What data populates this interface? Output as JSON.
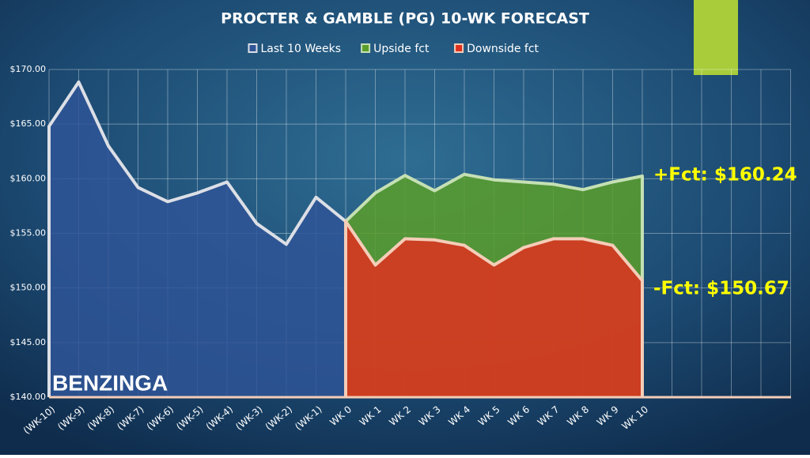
{
  "chart_data": {
    "type": "area",
    "title": "PROCTER & GAMBLE (PG) 10-WK FORECAST",
    "categories": [
      "(WK-10)",
      "(WK-9)",
      "(WK-8)",
      "(WK-7)",
      "(WK-6)",
      "(WK-5)",
      "(WK-4)",
      "(WK-3)",
      "(WK-2)",
      "(WK-1)",
      "WK 0",
      "WK 1",
      "WK 2",
      "WK 3",
      "WK 4",
      "WK 5",
      "WK 6",
      "WK 7",
      "WK 8",
      "WK 9",
      "WK 10",
      null,
      null,
      null,
      null,
      null
    ],
    "series": [
      {
        "name": "Last 10 Weeks",
        "color": "#2f5597",
        "line_color": "#dcdfe6",
        "values": [
          164.8,
          168.85,
          163.0,
          159.2,
          157.9,
          158.7,
          159.7,
          155.9,
          154.0,
          158.3,
          156.1,
          null,
          null,
          null,
          null,
          null,
          null,
          null,
          null,
          null,
          null,
          null,
          null,
          null,
          null,
          null
        ]
      },
      {
        "name": "Upside fct",
        "color": "#5a9e2a",
        "line_color": "#c5e0b4",
        "values": [
          null,
          null,
          null,
          null,
          null,
          null,
          null,
          null,
          null,
          null,
          156.1,
          158.7,
          160.3,
          158.9,
          160.4,
          159.9,
          159.7,
          159.5,
          159.0,
          159.7,
          160.24,
          null,
          null,
          null,
          null,
          null
        ]
      },
      {
        "name": "Downside fct",
        "color": "#e0301e",
        "line_color": "#f4cdb8",
        "values": [
          null,
          null,
          null,
          null,
          null,
          null,
          null,
          null,
          null,
          null,
          156.1,
          152.1,
          154.5,
          154.4,
          153.9,
          152.1,
          153.7,
          154.5,
          154.5,
          153.9,
          150.67,
          null,
          null,
          null,
          null,
          null
        ]
      }
    ],
    "ylim": [
      140,
      170
    ],
    "yticks": [
      {
        "value": 140,
        "label": "$140.00"
      },
      {
        "value": 145,
        "label": "$145.00"
      },
      {
        "value": 150,
        "label": "$150.00"
      },
      {
        "value": 155,
        "label": "$155.00"
      },
      {
        "value": 160,
        "label": "$160.00"
      },
      {
        "value": 165,
        "label": "$165.00"
      },
      {
        "value": 170,
        "label": "$170.00"
      }
    ],
    "grid": true,
    "annotations": [
      "+Fct: $160.24",
      "-Fct: $150.67"
    ],
    "brand": "BENZINGA"
  }
}
